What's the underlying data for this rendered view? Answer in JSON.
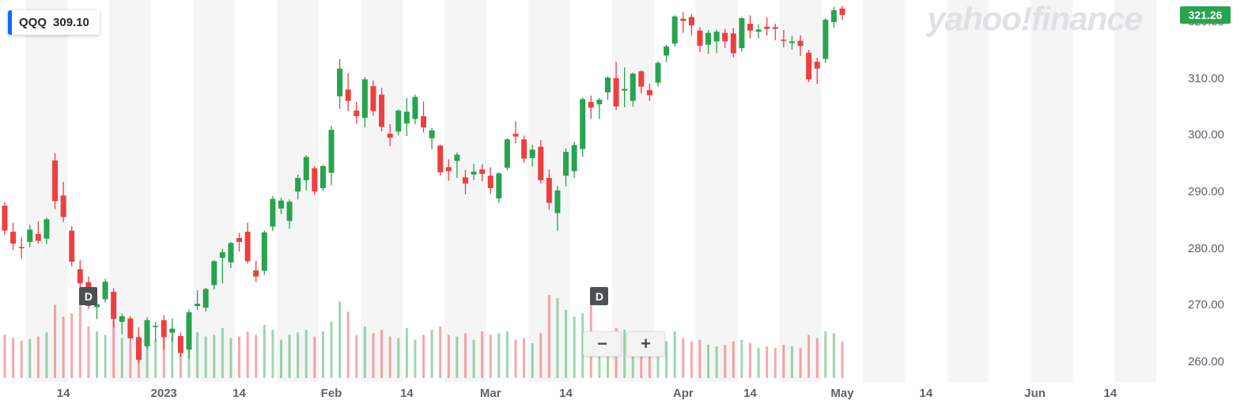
{
  "legend": {
    "symbol": "QQQ",
    "value": "309.10"
  },
  "price_badge": {
    "value": "321.26"
  },
  "watermark": "yahoo!finance",
  "zoom_controls": {
    "zoom_out": "−",
    "zoom_in": "+"
  },
  "colors": {
    "up": "#28a34f",
    "down": "#ec4040",
    "accent_blue": "#0f69ff",
    "marker_bg": "#4b5157",
    "watermark_gray": "#e0e1e5",
    "axis_text": "#5e646c",
    "stripe": "#f5f5f6",
    "badge_text": "#ffffff"
  },
  "chart_data": {
    "type": "candlestick",
    "symbol": "QQQ",
    "interval": "D",
    "last_price": 321.26,
    "legend_price": 309.1,
    "grid": "vertical-stripes-only",
    "legend_position": "top-left",
    "price_axis_position": "right",
    "ylim_estimate": [
      252,
      324
    ],
    "y_axis": {
      "tick_labels": [
        "320.00",
        "310.00",
        "300.00",
        "290.00",
        "280.00",
        "270.00",
        "260.00"
      ],
      "tick_values": [
        320,
        310,
        300,
        290,
        280,
        270,
        260
      ]
    },
    "x_axis": {
      "ticks": [
        {
          "label": "14",
          "date": "2022-12-14"
        },
        {
          "label": "2023",
          "date": "2023-01-03"
        },
        {
          "label": "14",
          "date": "2023-01-14"
        },
        {
          "label": "Feb",
          "date": "2023-02-01"
        },
        {
          "label": "14",
          "date": "2023-02-14"
        },
        {
          "label": "Mar",
          "date": "2023-03-01"
        },
        {
          "label": "14",
          "date": "2023-03-14"
        },
        {
          "label": "Apr",
          "date": "2023-04-01"
        },
        {
          "label": "14",
          "date": "2023-04-14"
        },
        {
          "label": "May",
          "date": "2023-05-01"
        },
        {
          "label": "14",
          "date": "2023-05-14"
        },
        {
          "label": "Jun",
          "date": "2023-06-01"
        },
        {
          "label": "14",
          "date": "2023-06-14"
        }
      ]
    },
    "events": [
      {
        "label": "D",
        "date": "2022-12-19"
      },
      {
        "label": "D",
        "date": "2023-03-20"
      }
    ],
    "columns": [
      "date",
      "open",
      "high",
      "low",
      "close",
      "volume_millions"
    ],
    "candles": [
      [
        "2022-12-05",
        287.6,
        288.2,
        282.4,
        283.2,
        52
      ],
      [
        "2022-12-06",
        283.0,
        284.6,
        279.8,
        280.9,
        48
      ],
      [
        "2022-12-07",
        280.3,
        282.0,
        278.2,
        280.2,
        45
      ],
      [
        "2022-12-08",
        281.2,
        284.2,
        280.3,
        283.4,
        47
      ],
      [
        "2022-12-09",
        282.6,
        284.8,
        280.9,
        281.4,
        50
      ],
      [
        "2022-12-12",
        281.8,
        285.5,
        280.8,
        285.2,
        55
      ],
      [
        "2022-12-13",
        295.6,
        296.9,
        287.0,
        288.4,
        88
      ],
      [
        "2022-12-14",
        289.4,
        291.8,
        284.7,
        285.6,
        74
      ],
      [
        "2022-12-15",
        283.2,
        284.0,
        276.9,
        277.7,
        78
      ],
      [
        "2022-12-16",
        276.4,
        278.0,
        273.2,
        273.9,
        95
      ],
      [
        "2022-12-19",
        274.1,
        275.1,
        269.4,
        269.9,
        62
      ],
      [
        "2022-12-20",
        269.7,
        271.9,
        267.6,
        270.2,
        56
      ],
      [
        "2022-12-21",
        271.1,
        274.7,
        270.5,
        274.2,
        52
      ],
      [
        "2022-12-22",
        272.4,
        273.1,
        266.1,
        267.6,
        70
      ],
      [
        "2022-12-23",
        267.1,
        268.6,
        264.9,
        268.1,
        48
      ],
      [
        "2022-12-27",
        267.7,
        268.1,
        263.7,
        264.2,
        44
      ],
      [
        "2022-12-28",
        264.4,
        266.1,
        259.9,
        260.4,
        50
      ],
      [
        "2022-12-29",
        262.8,
        267.9,
        262.3,
        267.4,
        52
      ],
      [
        "2022-12-30",
        266.2,
        267.1,
        263.6,
        266.4,
        46
      ],
      [
        "2023-01-03",
        267.4,
        268.3,
        262.2,
        264.4,
        58
      ],
      [
        "2023-01-04",
        265.2,
        267.7,
        263.6,
        265.9,
        54
      ],
      [
        "2023-01-05",
        264.6,
        265.2,
        260.9,
        261.6,
        50
      ],
      [
        "2023-01-06",
        262.2,
        269.3,
        260.6,
        268.8,
        72
      ],
      [
        "2023-01-09",
        269.9,
        272.7,
        269.2,
        270.3,
        55
      ],
      [
        "2023-01-10",
        269.6,
        273.1,
        268.9,
        272.9,
        50
      ],
      [
        "2023-01-11",
        273.6,
        278.0,
        272.8,
        277.8,
        52
      ],
      [
        "2023-01-12",
        278.4,
        280.0,
        273.9,
        279.4,
        60
      ],
      [
        "2023-01-13",
        277.6,
        281.2,
        276.6,
        281.0,
        48
      ],
      [
        "2023-01-17",
        281.9,
        282.8,
        279.5,
        281.2,
        50
      ],
      [
        "2023-01-18",
        283.0,
        284.6,
        277.4,
        277.8,
        56
      ],
      [
        "2023-01-19",
        276.2,
        277.9,
        274.1,
        275.1,
        52
      ],
      [
        "2023-01-20",
        276.1,
        283.2,
        275.4,
        282.9,
        64
      ],
      [
        "2023-01-23",
        283.9,
        289.3,
        283.1,
        288.8,
        58
      ],
      [
        "2023-01-24",
        287.1,
        289.0,
        286.1,
        288.5,
        46
      ],
      [
        "2023-01-25",
        284.9,
        288.7,
        283.5,
        288.3,
        52
      ],
      [
        "2023-01-26",
        290.1,
        293.1,
        288.7,
        292.5,
        55
      ],
      [
        "2023-01-27",
        292.1,
        296.5,
        290.3,
        296.2,
        58
      ],
      [
        "2023-01-30",
        294.2,
        294.6,
        289.5,
        290.1,
        50
      ],
      [
        "2023-01-31",
        290.7,
        294.8,
        290.2,
        294.6,
        56
      ],
      [
        "2023-02-01",
        293.4,
        301.7,
        291.2,
        301.0,
        68
      ],
      [
        "2023-02-02",
        306.9,
        313.5,
        304.7,
        311.8,
        92
      ],
      [
        "2023-02-03",
        308.1,
        311.0,
        304.3,
        306.1,
        80
      ],
      [
        "2023-02-06",
        304.4,
        305.9,
        302.1,
        303.4,
        52
      ],
      [
        "2023-02-07",
        303.1,
        310.3,
        301.4,
        309.9,
        62
      ],
      [
        "2023-02-08",
        308.7,
        309.7,
        303.5,
        304.3,
        54
      ],
      [
        "2023-02-09",
        307.2,
        308.4,
        300.7,
        301.5,
        58
      ],
      [
        "2023-02-10",
        300.3,
        302.0,
        298.1,
        299.6,
        50
      ],
      [
        "2023-02-13",
        300.7,
        304.6,
        300.0,
        304.4,
        48
      ],
      [
        "2023-02-14",
        302.1,
        306.6,
        299.9,
        304.2,
        60
      ],
      [
        "2023-02-15",
        302.9,
        307.2,
        302.0,
        306.8,
        46
      ],
      [
        "2023-02-16",
        303.4,
        306.0,
        300.5,
        301.4,
        52
      ],
      [
        "2023-02-17",
        299.5,
        301.3,
        297.5,
        300.9,
        58
      ],
      [
        "2023-02-21",
        298.2,
        298.4,
        292.9,
        293.5,
        62
      ],
      [
        "2023-02-22",
        294.4,
        295.8,
        292.0,
        293.7,
        52
      ],
      [
        "2023-02-23",
        295.5,
        297.0,
        292.5,
        296.6,
        50
      ],
      [
        "2023-02-24",
        292.6,
        293.9,
        289.6,
        291.5,
        54
      ],
      [
        "2023-02-27",
        293.1,
        295.0,
        292.1,
        293.6,
        46
      ],
      [
        "2023-02-28",
        294.0,
        294.9,
        291.9,
        293.2,
        56
      ],
      [
        "2023-03-01",
        292.9,
        294.4,
        289.7,
        290.7,
        52
      ],
      [
        "2023-03-02",
        288.9,
        293.5,
        288.1,
        293.3,
        54
      ],
      [
        "2023-03-03",
        294.3,
        299.5,
        293.9,
        299.3,
        56
      ],
      [
        "2023-03-06",
        300.3,
        302.5,
        298.6,
        299.8,
        46
      ],
      [
        "2023-03-07",
        299.3,
        300.0,
        295.2,
        295.9,
        48
      ],
      [
        "2023-03-08",
        296.0,
        298.3,
        294.5,
        297.5,
        42
      ],
      [
        "2023-03-09",
        298.0,
        299.2,
        291.5,
        292.1,
        54
      ],
      [
        "2023-03-10",
        292.5,
        294.0,
        286.9,
        288.1,
        100
      ],
      [
        "2023-03-13",
        286.3,
        291.1,
        283.2,
        290.3,
        96
      ],
      [
        "2023-03-14",
        292.9,
        297.7,
        291.0,
        297.1,
        82
      ],
      [
        "2023-03-15",
        293.7,
        298.9,
        292.5,
        298.3,
        74
      ],
      [
        "2023-03-16",
        297.6,
        306.7,
        296.2,
        306.4,
        78
      ],
      [
        "2023-03-17",
        305.9,
        307.0,
        302.9,
        304.9,
        92
      ],
      [
        "2023-03-20",
        305.5,
        306.6,
        302.9,
        306.3,
        56
      ],
      [
        "2023-03-21",
        307.6,
        310.4,
        306.3,
        310.2,
        52
      ],
      [
        "2023-03-22",
        310.1,
        313.0,
        304.5,
        305.1,
        60
      ],
      [
        "2023-03-23",
        307.9,
        312.0,
        305.0,
        308.2,
        58
      ],
      [
        "2023-03-24",
        306.1,
        311.1,
        305.1,
        310.9,
        50
      ],
      [
        "2023-03-27",
        311.3,
        311.5,
        307.4,
        308.6,
        42
      ],
      [
        "2023-03-28",
        308.0,
        309.1,
        306.1,
        307.1,
        40
      ],
      [
        "2023-03-29",
        309.3,
        313.1,
        308.6,
        312.8,
        46
      ],
      [
        "2023-03-30",
        314.1,
        316.0,
        312.9,
        315.7,
        44
      ],
      [
        "2023-03-31",
        316.2,
        321.2,
        315.7,
        321.0,
        56
      ],
      [
        "2023-04-03",
        320.6,
        321.8,
        318.1,
        320.2,
        48
      ],
      [
        "2023-04-04",
        320.9,
        321.4,
        317.6,
        319.4,
        44
      ],
      [
        "2023-04-05",
        318.5,
        319.1,
        314.7,
        315.8,
        46
      ],
      [
        "2023-04-06",
        316.0,
        318.6,
        314.4,
        318.1,
        40
      ],
      [
        "2023-04-10",
        316.6,
        318.7,
        314.5,
        318.3,
        38
      ],
      [
        "2023-04-11",
        318.1,
        318.8,
        315.4,
        316.6,
        40
      ],
      [
        "2023-04-12",
        318.0,
        319.0,
        313.8,
        314.5,
        44
      ],
      [
        "2023-04-13",
        315.4,
        320.9,
        314.8,
        320.7,
        46
      ],
      [
        "2023-04-14",
        319.7,
        321.2,
        317.1,
        318.5,
        42
      ],
      [
        "2023-04-17",
        318.3,
        319.6,
        317.1,
        318.7,
        36
      ],
      [
        "2023-04-18",
        319.2,
        320.8,
        317.6,
        318.8,
        38
      ],
      [
        "2023-04-19",
        319.1,
        319.7,
        316.8,
        318.8,
        36
      ],
      [
        "2023-04-20",
        316.9,
        318.6,
        315.5,
        316.8,
        40
      ],
      [
        "2023-04-21",
        316.3,
        317.6,
        315.1,
        316.6,
        38
      ],
      [
        "2023-04-24",
        316.7,
        317.7,
        314.0,
        315.8,
        36
      ],
      [
        "2023-04-25",
        314.6,
        315.1,
        309.4,
        309.9,
        52
      ],
      [
        "2023-04-26",
        313.0,
        313.7,
        309.1,
        311.8,
        48
      ],
      [
        "2023-04-27",
        313.5,
        320.7,
        312.8,
        320.4,
        56
      ],
      [
        "2023-04-28",
        320.0,
        322.7,
        319.0,
        322.1,
        54
      ],
      [
        "2023-05-01",
        322.4,
        322.9,
        320.4,
        321.26,
        44
      ]
    ]
  }
}
